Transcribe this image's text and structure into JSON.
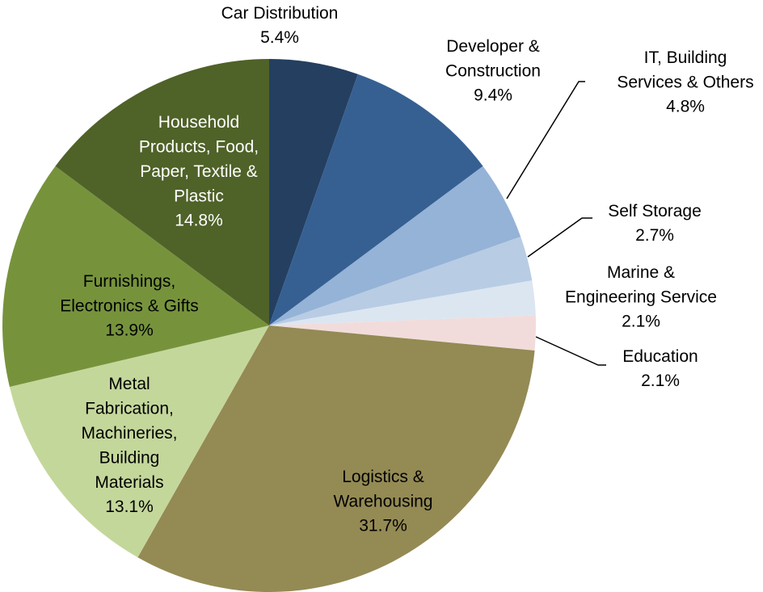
{
  "chart_data": {
    "type": "pie",
    "categories": [
      "Car Distribution",
      "Developer &\nConstruction",
      "IT, Building\nServices & Others",
      "Self Storage",
      "Marine &\nEngineering Service",
      "Education",
      "Logistics &\nWarehousing",
      "Metal\nFabrication,\nMachineries,\nBuilding\nMaterials",
      "Furnishings,\nElectronics & Gifts",
      "Household\nProducts, Food,\nPaper, Textile &\nPlastic"
    ],
    "values": [
      5.4,
      9.4,
      4.8,
      2.7,
      2.1,
      2.1,
      31.7,
      13.1,
      13.9,
      14.8
    ],
    "value_labels": [
      "5.4%",
      "9.4%",
      "4.8%",
      "2.7%",
      "2.1%",
      "2.1%",
      "31.7%",
      "13.1%",
      "13.9%",
      "14.8%"
    ],
    "colors": [
      "#243f60",
      "#366092",
      "#95b3d7",
      "#b8cce4",
      "#dce6f1",
      "#f2dcdb",
      "#948a54",
      "#c4d79b",
      "#76933c",
      "#4f6228"
    ]
  }
}
